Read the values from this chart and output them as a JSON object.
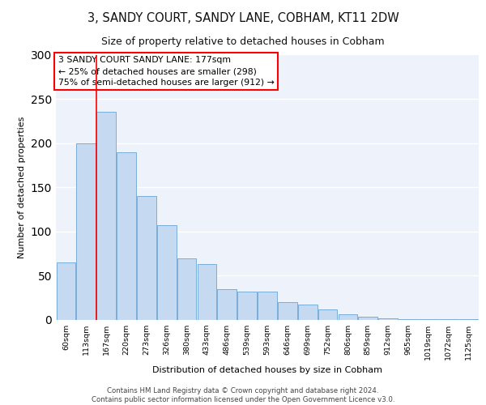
{
  "title1": "3, SANDY COURT, SANDY LANE, COBHAM, KT11 2DW",
  "title2": "Size of property relative to detached houses in Cobham",
  "xlabel": "Distribution of detached houses by size in Cobham",
  "ylabel": "Number of detached properties",
  "bar_labels": [
    "60sqm",
    "113sqm",
    "167sqm",
    "220sqm",
    "273sqm",
    "326sqm",
    "380sqm",
    "433sqm",
    "486sqm",
    "539sqm",
    "593sqm",
    "646sqm",
    "699sqm",
    "752sqm",
    "806sqm",
    "859sqm",
    "912sqm",
    "965sqm",
    "1019sqm",
    "1072sqm",
    "1125sqm"
  ],
  "bar_heights": [
    65,
    200,
    235,
    190,
    140,
    107,
    70,
    63,
    35,
    32,
    32,
    20,
    17,
    12,
    6,
    4,
    2,
    1,
    1,
    1,
    1
  ],
  "bar_color": "#c5d9f0",
  "bar_edgecolor": "#7aadda",
  "red_line_x": 1.5,
  "annotation_lines": [
    "3 SANDY COURT SANDY LANE: 177sqm",
    "← 25% of detached houses are smaller (298)",
    "75% of semi-detached houses are larger (912) →"
  ],
  "footer_lines": [
    "Contains HM Land Registry data © Crown copyright and database right 2024.",
    "Contains public sector information licensed under the Open Government Licence v3.0."
  ],
  "ylim": [
    0,
    300
  ],
  "background_color": "#eef2fa"
}
